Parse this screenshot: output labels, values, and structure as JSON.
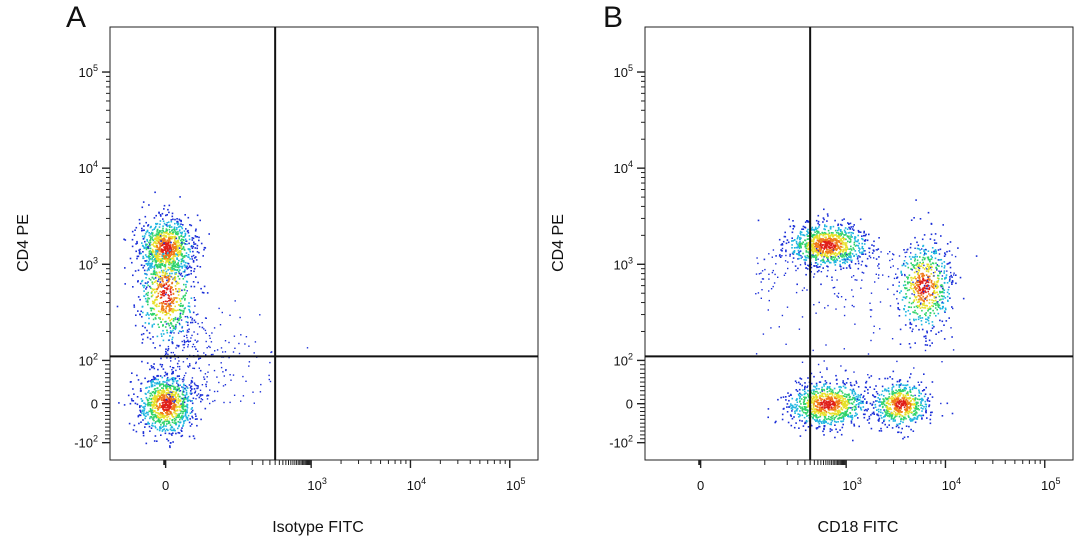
{
  "chart_data": [
    {
      "type": "scatter",
      "panel_label": "A",
      "xlabel": "Isotype FITC",
      "ylabel": "CD4 PE",
      "x_ticks": [
        "0",
        "10^3",
        "10^4",
        "10^5"
      ],
      "y_ticks": [
        "10^5",
        "10^4",
        "10^3",
        "10^2",
        "0",
        "-10^2"
      ],
      "x_scale": "biexponential",
      "y_scale": "biexponential",
      "quadrant_gate": {
        "x": 180,
        "y": 110
      },
      "populations": [
        {
          "name": "",
          "x": 0,
          "y": 1500,
          "density": "high"
        },
        {
          "name": "",
          "x": 0,
          "y": 500,
          "density": "medium"
        },
        {
          "name": "",
          "x": 0,
          "y": 0,
          "density": "high"
        }
      ]
    },
    {
      "type": "scatter",
      "panel_label": "B",
      "xlabel": "CD18 FITC",
      "ylabel": "CD4 PE",
      "x_ticks": [
        "0",
        "10^3",
        "10^4",
        "10^5"
      ],
      "y_ticks": [
        "10^5",
        "10^4",
        "10^3",
        "10^2",
        "0",
        "-10^2"
      ],
      "x_scale": "biexponential",
      "y_scale": "biexponential",
      "quadrant_gate": {
        "x": 180,
        "y": 110
      },
      "populations": [
        {
          "name": "",
          "x": 400,
          "y": 1600,
          "density": "high"
        },
        {
          "name": "",
          "x": 6000,
          "y": 600,
          "density": "medium"
        },
        {
          "name": "",
          "x": 400,
          "y": 0,
          "density": "high"
        },
        {
          "name": "",
          "x": 3500,
          "y": 0,
          "density": "medium"
        }
      ]
    }
  ],
  "colors": {
    "density_low": "#1b2fd8",
    "density_mid_low": "#1fb6e0",
    "density_mid": "#2fd36a",
    "density_mid_high": "#e8e02a",
    "density_high": "#f07a18",
    "density_peak": "#e0201a",
    "axis": "#111111"
  }
}
